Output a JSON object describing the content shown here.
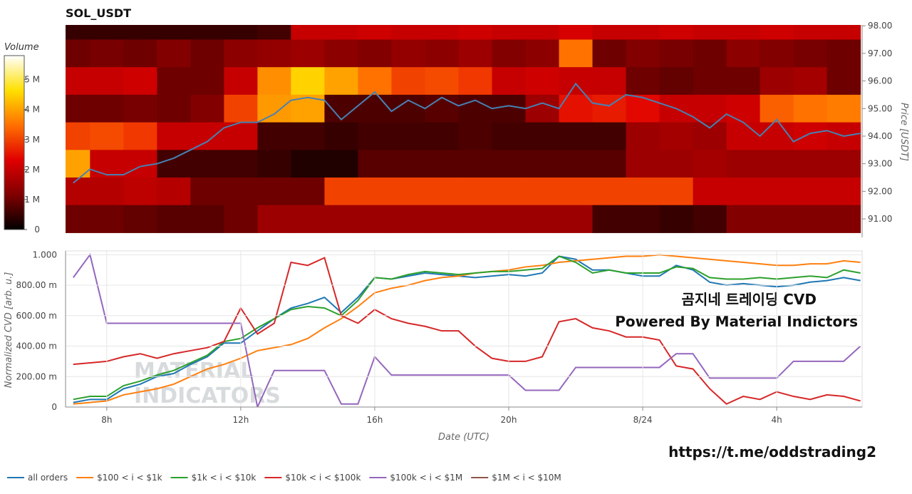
{
  "chart_data": [
    {
      "type": "heatmap",
      "title": "SOL_USDT",
      "ylabel": "Price [USDT]",
      "xlim": [
        6.77,
        30.55
      ],
      "ylim": [
        90.33,
        98.03
      ],
      "yticks": [
        {
          "value": 91,
          "label": "91.00"
        },
        {
          "value": 92,
          "label": "92.00"
        },
        {
          "value": 93,
          "label": "93.00"
        },
        {
          "value": 94,
          "label": "94.00"
        },
        {
          "value": 95,
          "label": "95.00"
        },
        {
          "value": 96,
          "label": "96.00"
        },
        {
          "value": 97,
          "label": "97.00"
        },
        {
          "value": 98,
          "label": "98.00"
        }
      ],
      "x": [
        7,
        8,
        9,
        10,
        11,
        12,
        13,
        14,
        15,
        16,
        17,
        18,
        19,
        20,
        21,
        22,
        23,
        24,
        25,
        26,
        27,
        28,
        29,
        30
      ],
      "y": [
        98,
        97,
        96,
        95,
        94,
        93,
        92,
        91
      ],
      "z": [
        [
          0.5,
          0.5,
          0.5,
          0.5,
          0.5,
          0.5,
          0.6,
          2.0,
          2.0,
          2.1,
          2.0,
          2.0,
          2.1,
          2.0,
          2.0,
          2.2,
          2.0,
          2.0,
          2.1,
          2.0,
          2.0,
          2.1,
          2.0,
          2.0
        ],
        [
          1.0,
          1.1,
          1.0,
          1.2,
          1.0,
          1.3,
          1.4,
          1.5,
          1.3,
          1.2,
          1.4,
          1.3,
          1.5,
          1.2,
          1.3,
          3.5,
          1.0,
          1.2,
          1.1,
          1.0,
          1.3,
          1.2,
          1.1,
          1.0
        ],
        [
          2.0,
          2.0,
          2.1,
          1.0,
          1.0,
          2.0,
          3.8,
          4.5,
          4.0,
          3.5,
          3.0,
          3.1,
          2.9,
          2.0,
          2.1,
          2.0,
          2.0,
          1.0,
          0.9,
          1.0,
          1.0,
          1.5,
          1.6,
          1.0
        ],
        [
          1.0,
          1.0,
          1.1,
          1.0,
          1.2,
          3.0,
          3.9,
          4.0,
          0.7,
          0.7,
          0.7,
          0.8,
          0.7,
          0.7,
          1.5,
          2.5,
          2.6,
          2.4,
          2.0,
          2.0,
          2.1,
          3.3,
          3.5,
          3.6
        ],
        [
          3.0,
          3.1,
          2.9,
          2.0,
          2.0,
          2.0,
          0.6,
          0.6,
          0.5,
          0.6,
          0.6,
          0.6,
          0.7,
          0.6,
          0.6,
          0.6,
          0.6,
          1.5,
          1.6,
          1.5,
          2.0,
          2.0,
          2.1,
          2.0
        ],
        [
          4.0,
          2.0,
          2.0,
          0.6,
          0.6,
          0.6,
          0.5,
          0.3,
          0.3,
          0.8,
          0.8,
          0.8,
          0.8,
          0.8,
          0.8,
          0.8,
          0.8,
          1.5,
          1.5,
          1.6,
          1.5,
          1.5,
          1.5,
          1.5
        ],
        [
          1.8,
          1.8,
          1.9,
          1.8,
          1.0,
          1.0,
          1.0,
          1.0,
          3.0,
          3.0,
          3.0,
          3.0,
          3.0,
          3.0,
          3.0,
          3.0,
          3.0,
          3.0,
          3.0,
          2.0,
          2.0,
          2.0,
          2.0,
          2.0
        ],
        [
          1.0,
          1.0,
          0.9,
          0.8,
          0.8,
          1.0,
          1.5,
          1.5,
          1.5,
          1.5,
          1.5,
          1.5,
          1.5,
          1.5,
          1.5,
          1.5,
          0.6,
          0.6,
          0.5,
          0.6,
          1.2,
          1.2,
          1.2,
          1.2
        ]
      ],
      "colorbar": {
        "label": "Volume",
        "lim": [
          0,
          5.8
        ],
        "ticks": [
          0,
          {
            "value": 1,
            "label": "1 M"
          },
          {
            "value": 2,
            "label": "2 M"
          },
          {
            "value": 3,
            "label": "3 M"
          },
          {
            "value": 4,
            "label": "4 M"
          },
          {
            "value": 5,
            "label": "5 M"
          }
        ]
      },
      "series": [
        {
          "color": "#4682b4",
          "x": [
            7,
            7.5,
            8,
            8.5,
            9,
            9.5,
            10,
            10.5,
            11,
            11.5,
            12,
            12.5,
            13,
            13.5,
            14,
            14.5,
            15,
            15.5,
            16,
            16.5,
            17,
            17.5,
            18,
            18.5,
            19,
            19.5,
            20,
            20.5,
            21,
            21.5,
            22,
            22.5,
            23,
            23.5,
            24,
            24.5,
            25,
            25.5,
            26,
            26.5,
            27,
            27.5,
            28,
            28.5,
            29,
            29.5,
            30,
            30.5
          ],
          "values": [
            92.3,
            92.8,
            92.6,
            92.6,
            92.9,
            93.0,
            93.2,
            93.5,
            93.8,
            94.3,
            94.5,
            94.5,
            94.8,
            95.3,
            95.4,
            95.3,
            94.6,
            95.1,
            95.6,
            94.9,
            95.3,
            95.0,
            95.4,
            95.1,
            95.3,
            95.0,
            95.1,
            95.0,
            95.2,
            95.0,
            95.9,
            95.2,
            95.1,
            95.5,
            95.4,
            95.2,
            95.0,
            94.7,
            94.3,
            94.8,
            94.5,
            94.0,
            94.6,
            93.8,
            94.1,
            94.2,
            94.0,
            94.1
          ]
        }
      ]
    },
    {
      "type": "line",
      "xlabel": "Date (UTC)",
      "ylabel": "Normalized CVD [arb. u.]",
      "xlim": [
        6.77,
        30.55
      ],
      "ylim": [
        0,
        1.025
      ],
      "xticks": [
        {
          "value": 8,
          "label": "8h"
        },
        {
          "value": 12,
          "label": "12h"
        },
        {
          "value": 16,
          "label": "16h"
        },
        {
          "value": 20,
          "label": "20h"
        },
        {
          "value": 24,
          "label": "8/24"
        },
        {
          "value": 28,
          "label": "4h"
        }
      ],
      "yticks": [
        0,
        {
          "value": 0.2,
          "label": "200.00 m"
        },
        {
          "value": 0.4,
          "label": "400.00 m"
        },
        {
          "value": 0.6,
          "label": "600.00 m"
        },
        {
          "value": 0.8,
          "label": "800.00 m"
        },
        {
          "value": 1,
          "label": "1.000"
        }
      ],
      "grid": true,
      "x": [
        7,
        7.5,
        8,
        8.5,
        9,
        9.5,
        10,
        10.5,
        11,
        11.5,
        12,
        12.5,
        13,
        13.5,
        14,
        14.5,
        15,
        15.5,
        16,
        16.5,
        17,
        17.5,
        18,
        18.5,
        19,
        19.5,
        20,
        20.5,
        21,
        21.5,
        22,
        22.5,
        23,
        23.5,
        24,
        24.5,
        25,
        25.5,
        26,
        26.5,
        27,
        27.5,
        28,
        28.5,
        29,
        29.5,
        30,
        30.5
      ],
      "series": [
        {
          "name": "all orders",
          "color": "#1f77b4",
          "values": [
            0.03,
            0.05,
            0.05,
            0.12,
            0.15,
            0.2,
            0.22,
            0.28,
            0.33,
            0.42,
            0.42,
            0.5,
            0.58,
            0.65,
            0.68,
            0.72,
            0.62,
            0.72,
            0.85,
            0.84,
            0.86,
            0.88,
            0.87,
            0.86,
            0.85,
            0.86,
            0.87,
            0.86,
            0.88,
            0.99,
            0.97,
            0.9,
            0.9,
            0.88,
            0.86,
            0.86,
            0.93,
            0.9,
            0.82,
            0.8,
            0.81,
            0.8,
            0.79,
            0.8,
            0.82,
            0.83,
            0.85,
            0.83
          ]
        },
        {
          "name": "$100 < i < $1k",
          "color": "#ff7f0e",
          "values": [
            0.02,
            0.03,
            0.04,
            0.08,
            0.1,
            0.12,
            0.15,
            0.2,
            0.25,
            0.28,
            0.32,
            0.37,
            0.39,
            0.41,
            0.45,
            0.52,
            0.58,
            0.66,
            0.75,
            0.78,
            0.8,
            0.83,
            0.85,
            0.86,
            0.88,
            0.89,
            0.9,
            0.92,
            0.93,
            0.95,
            0.96,
            0.97,
            0.98,
            0.99,
            0.99,
            1.0,
            0.99,
            0.98,
            0.97,
            0.96,
            0.95,
            0.94,
            0.93,
            0.93,
            0.94,
            0.94,
            0.96,
            0.95
          ]
        },
        {
          "name": "$1k < i < $10k",
          "color": "#2ca02c",
          "values": [
            0.05,
            0.07,
            0.07,
            0.14,
            0.17,
            0.21,
            0.24,
            0.29,
            0.34,
            0.43,
            0.45,
            0.52,
            0.58,
            0.64,
            0.66,
            0.65,
            0.6,
            0.7,
            0.85,
            0.84,
            0.87,
            0.89,
            0.88,
            0.87,
            0.88,
            0.89,
            0.89,
            0.9,
            0.91,
            0.99,
            0.95,
            0.88,
            0.9,
            0.88,
            0.88,
            0.88,
            0.92,
            0.91,
            0.85,
            0.84,
            0.84,
            0.85,
            0.84,
            0.85,
            0.86,
            0.85,
            0.9,
            0.88
          ]
        },
        {
          "name": "$10k < i < $100k",
          "color": "#d62728",
          "values": [
            0.28,
            0.29,
            0.3,
            0.33,
            0.35,
            0.32,
            0.35,
            0.37,
            0.39,
            0.43,
            0.65,
            0.48,
            0.55,
            0.95,
            0.93,
            0.98,
            0.6,
            0.55,
            0.64,
            0.58,
            0.55,
            0.53,
            0.5,
            0.5,
            0.4,
            0.32,
            0.3,
            0.3,
            0.33,
            0.56,
            0.58,
            0.52,
            0.5,
            0.46,
            0.46,
            0.44,
            0.27,
            0.25,
            0.12,
            0.02,
            0.07,
            0.05,
            0.1,
            0.07,
            0.05,
            0.08,
            0.07,
            0.04
          ]
        },
        {
          "name": "$100k < i < $1M",
          "color": "#9467bd",
          "values": [
            0.85,
            1.0,
            0.55,
            0.55,
            0.55,
            0.55,
            0.55,
            0.55,
            0.55,
            0.55,
            0.55,
            0,
            0.24,
            0.24,
            0.24,
            0.24,
            0.02,
            0.02,
            0.33,
            0.21,
            0.21,
            0.21,
            0.21,
            0.21,
            0.21,
            0.21,
            0.21,
            0.11,
            0.11,
            0.11,
            0.26,
            0.26,
            0.26,
            0.26,
            0.26,
            0.26,
            0.35,
            0.35,
            0.19,
            0.19,
            0.19,
            0.19,
            0.19,
            0.3,
            0.3,
            0.3,
            0.3,
            0.4
          ]
        },
        {
          "name": "$1M < i < $10M",
          "color": "#8c564b",
          "values": [
            null,
            null,
            null,
            null,
            null,
            null,
            null,
            null,
            null,
            null,
            null,
            null,
            null,
            null,
            null,
            null,
            null,
            null,
            null,
            null,
            null,
            null,
            null,
            null,
            null,
            null,
            null,
            null,
            null,
            null,
            null,
            null,
            null,
            null,
            null,
            null,
            null,
            null,
            null,
            null,
            null,
            null,
            null,
            null,
            null,
            null,
            null,
            null
          ]
        }
      ],
      "annotations": [
        "곰지네 트레이딩 CVD",
        "Powered By Material Indictors"
      ],
      "watermark": [
        "MATERIAL",
        "INDICATORS"
      ]
    }
  ],
  "footer": "https://t.me/oddstrading2"
}
